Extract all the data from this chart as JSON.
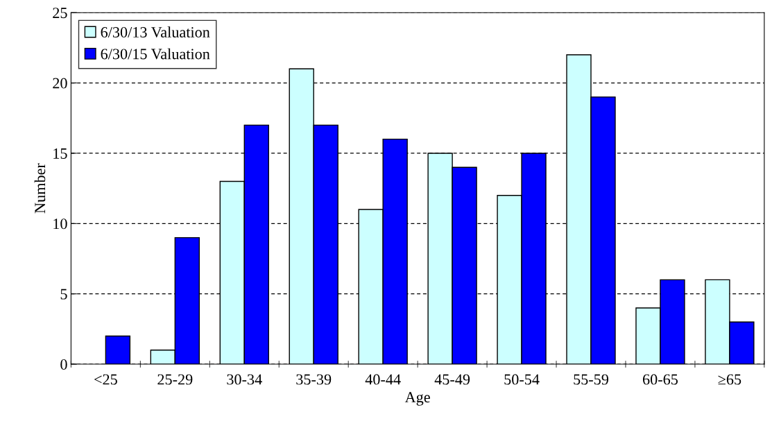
{
  "chart_data": {
    "type": "bar",
    "xlabel": "Age",
    "ylabel": "Number",
    "categories": [
      "<25",
      "25-29",
      "30-34",
      "35-39",
      "40-44",
      "45-49",
      "50-54",
      "55-59",
      "60-65",
      "≥65"
    ],
    "series": [
      {
        "name": "6/30/13 Valuation",
        "color": "#ccffff",
        "values": [
          null,
          1,
          13,
          21,
          11,
          15,
          12,
          22,
          4,
          6
        ]
      },
      {
        "name": "6/30/15 Valuation",
        "color": "#0000ff",
        "values": [
          2,
          9,
          17,
          17,
          16,
          14,
          15,
          19,
          6,
          3
        ]
      }
    ],
    "ylim": [
      0,
      25
    ],
    "yticks": [
      0,
      5,
      10,
      15,
      20,
      25
    ],
    "grid": "y",
    "legend": "top left"
  }
}
